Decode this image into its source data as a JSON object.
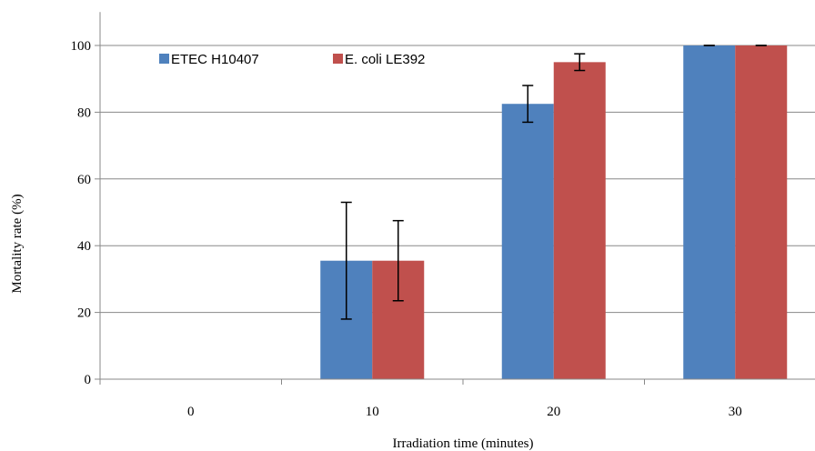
{
  "chart_data": {
    "type": "bar",
    "categories": [
      "0",
      "10",
      "20",
      "30"
    ],
    "series": [
      {
        "name": "ETEC H10407",
        "color": "#4F81BD",
        "values": [
          0,
          35.5,
          82.5,
          100
        ],
        "errors": [
          0,
          17.5,
          5.5,
          0
        ]
      },
      {
        "name": "E. coli LE392",
        "color": "#C0504D",
        "values": [
          0,
          35.5,
          95,
          100
        ],
        "errors": [
          0,
          12,
          2.5,
          0
        ]
      }
    ],
    "xlabel": "Irradiation time (minutes)",
    "ylabel": "Mortality rate (%)",
    "ylim": [
      0,
      110
    ],
    "yticks": [
      0,
      20,
      40,
      60,
      80,
      100
    ],
    "grid": true,
    "legend": "top-left"
  }
}
